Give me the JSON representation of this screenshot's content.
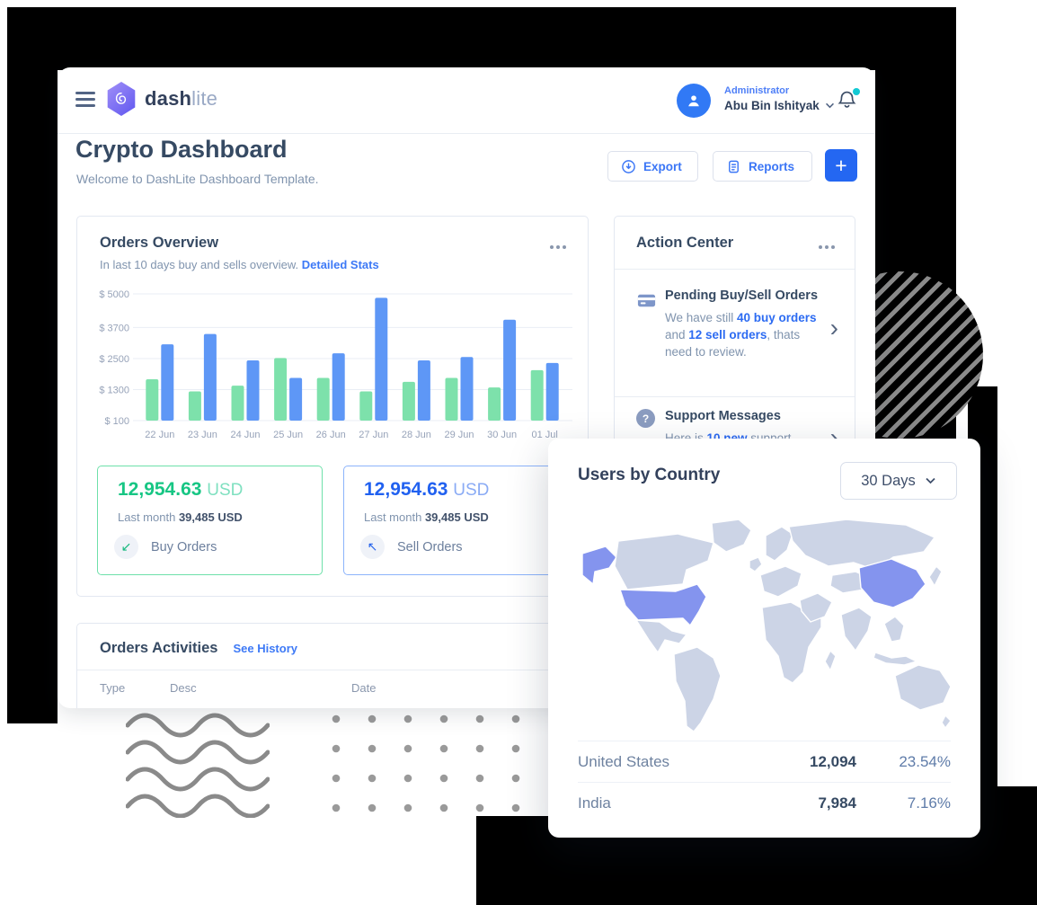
{
  "brand": {
    "name_primary": "dash",
    "name_secondary": "lite"
  },
  "header": {
    "role": "Administrator",
    "user": "Abu Bin Ishityak"
  },
  "page": {
    "title": "Crypto Dashboard",
    "subtitle": "Welcome to DashLite Dashboard Template."
  },
  "toolbar": {
    "export_label": "Export",
    "reports_label": "Reports",
    "add_label": "+"
  },
  "orders_overview": {
    "title": "Orders Overview",
    "subtitle": "In last 10 days buy and sells overview.",
    "link": "Detailed Stats",
    "chart_data": {
      "type": "bar",
      "categories": [
        "22 Jun",
        "23 Jun",
        "24 Jun",
        "25 Jun",
        "26 Jun",
        "27 Jun",
        "28 Jun",
        "29 Jun",
        "30 Jun",
        "01 Jul"
      ],
      "series": [
        {
          "name": "Buy Orders",
          "color": "#7de1ab",
          "values": [
            1700,
            1230,
            1450,
            2520,
            1750,
            1230,
            1600,
            1750,
            1380,
            2050
          ]
        },
        {
          "name": "Sell Orders",
          "color": "#5e97f6",
          "values": [
            3050,
            3450,
            2430,
            1750,
            2700,
            4850,
            2430,
            2560,
            4000,
            2330
          ]
        }
      ],
      "title": "",
      "xlabel": "",
      "ylabel": "",
      "ylim": [
        100,
        5000
      ],
      "yticks": {
        "values": [
          100,
          1300,
          2500,
          3700,
          5000
        ],
        "labels": [
          "$ 100",
          "$ 1300",
          "$ 2500",
          "$ 3700",
          "$ 5000"
        ]
      },
      "grid": true,
      "legend": false
    },
    "buy": {
      "amount": "12,954.63",
      "currency": "USD",
      "last_label": "Last month",
      "last_value": "39,485 USD",
      "label": "Buy Orders"
    },
    "sell": {
      "amount": "12,954.63",
      "currency": "USD",
      "last_label": "Last month",
      "last_value": "39,485 USD",
      "label": "Sell Orders"
    }
  },
  "action_center": {
    "title": "Action Center",
    "items": [
      {
        "title": "Pending Buy/Sell Orders",
        "runs": [
          "We have still ",
          "40 buy orders",
          " and ",
          "12 sell orders",
          ", thats need to review."
        ]
      },
      {
        "title": "Support Messages",
        "runs": [
          "Here is ",
          "10 new",
          " support"
        ]
      }
    ]
  },
  "orders_activities": {
    "title": "Orders Activities",
    "link": "See History",
    "columns": [
      "Type",
      "Desc",
      "Date"
    ]
  },
  "users_by_country": {
    "title": "Users by Country",
    "period": "30 Days",
    "rows": [
      {
        "country": "United States",
        "users": "12,094",
        "percent": "23.54%"
      },
      {
        "country": "India",
        "users": "7,984",
        "percent": "7.16%"
      }
    ],
    "map": {
      "base_color": "#ccd4e6",
      "highlight_color": "#8494ee",
      "highlighted": [
        "United States",
        "Alaska",
        "China"
      ]
    }
  },
  "icons": {
    "question": "?",
    "chevron_right": "›",
    "buy_arrow": "↙",
    "sell_arrow": "↖"
  },
  "colors": {
    "primary_button": "#2467f2",
    "link_blue": "#3b76f6",
    "accent_green": "#17c684",
    "accent_blue": "#2161f0",
    "text_dark": "#364a63",
    "text_muted": "#8094ae",
    "badge_teal": "#12c9d4",
    "deco_black": "#000000",
    "deco_gray": "#8a8a8a"
  }
}
